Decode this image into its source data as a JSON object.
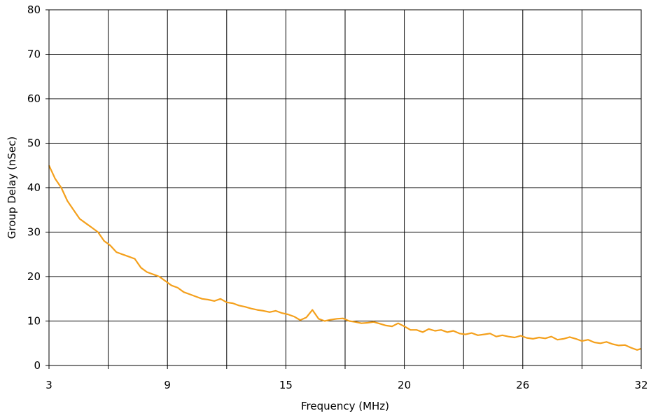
{
  "chart_data": {
    "type": "line",
    "title": "",
    "xlabel": "Frequency (MHz)",
    "ylabel": "Group Delay (nSec)",
    "x_tick_labels": [
      "3",
      "9",
      "15",
      "20",
      "26",
      "32"
    ],
    "y_ticks": [
      0,
      10,
      20,
      30,
      40,
      50,
      60,
      70,
      80
    ],
    "xlim": [
      3,
      32
    ],
    "ylim": [
      0,
      80
    ],
    "grid": true,
    "legend": "none",
    "series": [
      {
        "color": "#f4a01c",
        "x": [
          3.0,
          3.3,
          3.6,
          3.9,
          4.2,
          4.5,
          4.8,
          5.1,
          5.4,
          5.7,
          6.0,
          6.3,
          6.6,
          6.9,
          7.2,
          7.5,
          7.8,
          8.1,
          8.4,
          8.7,
          9.0,
          9.3,
          9.6,
          9.9,
          10.2,
          10.5,
          10.8,
          11.1,
          11.4,
          11.7,
          12.0,
          12.3,
          12.6,
          12.9,
          13.2,
          13.5,
          13.8,
          14.1,
          14.4,
          14.7,
          15.0,
          15.3,
          15.6,
          15.9,
          16.2,
          16.5,
          16.8,
          17.1,
          17.4,
          17.7,
          18.0,
          18.3,
          18.6,
          18.9,
          19.2,
          19.5,
          19.8,
          20.1,
          20.4,
          20.7,
          21.0,
          21.3,
          21.6,
          21.9,
          22.2,
          22.5,
          22.8,
          23.1,
          23.4,
          23.7,
          24.0,
          24.3,
          24.6,
          24.9,
          25.2,
          25.5,
          25.8,
          26.1,
          26.4,
          26.7,
          27.0,
          27.3,
          27.6,
          27.9,
          28.2,
          28.5,
          28.8,
          29.1,
          29.4,
          29.7,
          30.0,
          30.3,
          30.6,
          30.9,
          31.2,
          31.5,
          31.8,
          32.0
        ],
        "y": [
          45,
          42,
          40,
          37,
          35,
          33,
          32,
          31,
          30,
          28,
          27,
          25.5,
          25,
          24.5,
          24,
          22,
          21,
          20.5,
          20,
          19,
          18,
          17.5,
          16.5,
          16,
          15.5,
          15,
          14.8,
          14.5,
          15,
          14.2,
          14,
          13.5,
          13.2,
          12.8,
          12.5,
          12.3,
          12,
          12.3,
          11.8,
          11.5,
          11,
          10.2,
          10.8,
          12.5,
          10.5,
          10,
          10.3,
          10.5,
          10.6,
          10,
          9.8,
          9.5,
          9.6,
          9.8,
          9.4,
          9,
          8.8,
          9.5,
          8.8,
          8,
          8,
          7.5,
          8.2,
          7.8,
          8,
          7.5,
          7.8,
          7.2,
          7,
          7.3,
          6.8,
          7,
          7.2,
          6.5,
          6.8,
          6.5,
          6.3,
          6.7,
          6.2,
          6,
          6.3,
          6.1,
          6.5,
          5.8,
          6,
          6.4,
          6,
          5.5,
          5.8,
          5.2,
          5,
          5.3,
          4.8,
          4.5,
          4.6,
          4,
          3.5,
          3.8
        ]
      }
    ]
  }
}
